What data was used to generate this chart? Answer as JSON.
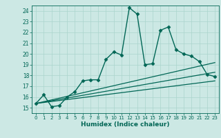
{
  "xlabel": "Humidex (Indice chaleur)",
  "background_color": "#cce8e4",
  "grid_color": "#aad4cc",
  "line_color": "#006655",
  "xlim": [
    -0.5,
    23.5
  ],
  "ylim": [
    14.5,
    24.5
  ],
  "xticks": [
    0,
    1,
    2,
    3,
    4,
    5,
    6,
    7,
    8,
    9,
    10,
    11,
    12,
    13,
    14,
    15,
    16,
    17,
    18,
    19,
    20,
    21,
    22,
    23
  ],
  "yticks": [
    15,
    16,
    17,
    18,
    19,
    20,
    21,
    22,
    23,
    24
  ],
  "series": [
    {
      "x": [
        0,
        1,
        2,
        3,
        4,
        5,
        6,
        7,
        8,
        9,
        10,
        11,
        12,
        13,
        14,
        15,
        16,
        17,
        18,
        19,
        20,
        21,
        22,
        23
      ],
      "y": [
        15.4,
        16.2,
        15.1,
        15.2,
        16.0,
        16.5,
        17.5,
        17.6,
        17.6,
        19.5,
        20.2,
        19.9,
        24.3,
        23.7,
        19.0,
        19.1,
        22.2,
        22.5,
        20.4,
        20.0,
        19.8,
        19.3,
        18.1,
        17.9
      ],
      "marker": "D",
      "markersize": 2.5,
      "linewidth": 1.0
    },
    {
      "x": [
        0,
        23
      ],
      "y": [
        15.4,
        19.2
      ],
      "marker": null,
      "linewidth": 0.9
    },
    {
      "x": [
        0,
        23
      ],
      "y": [
        15.4,
        18.3
      ],
      "marker": null,
      "linewidth": 0.9
    },
    {
      "x": [
        0,
        23
      ],
      "y": [
        15.4,
        17.5
      ],
      "marker": null,
      "linewidth": 0.9
    }
  ]
}
